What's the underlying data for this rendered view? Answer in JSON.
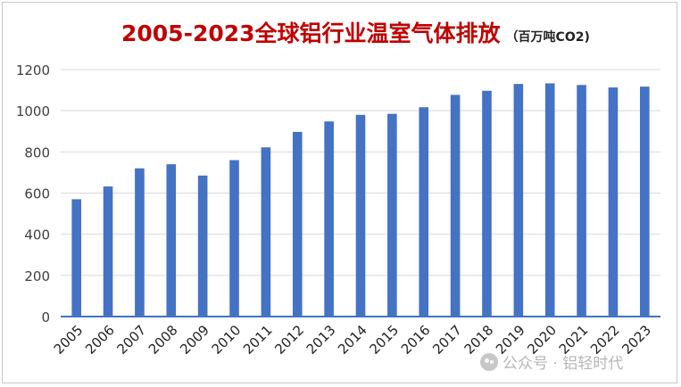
{
  "title": {
    "main": "2005-2023全球铝行业温室气体排放",
    "unit": "（百万吨CO2)"
  },
  "watermark": {
    "text": "公众号 · 铝轻时代",
    "icon": "wechat-icon"
  },
  "colors": {
    "bar": "#4472c4",
    "title": "#c00000",
    "grid": "#d9d9d9",
    "axis": "#4472c4",
    "tick_text": "#404040"
  },
  "chart_data": {
    "type": "bar",
    "title": "2005-2023全球铝行业温室气体排放",
    "xlabel": "",
    "ylabel": "",
    "ylim": [
      0,
      1200
    ],
    "yticks": [
      0,
      200,
      400,
      600,
      800,
      1000,
      1200
    ],
    "grid": true,
    "legend": "none",
    "categories": [
      "2005",
      "2006",
      "2007",
      "2008",
      "2009",
      "2010",
      "2011",
      "2012",
      "2013",
      "2014",
      "2015",
      "2016",
      "2017",
      "2018",
      "2019",
      "2020",
      "2021",
      "2022",
      "2023"
    ],
    "values": [
      570,
      632,
      720,
      740,
      685,
      760,
      822,
      897,
      948,
      980,
      985,
      1017,
      1077,
      1097,
      1130,
      1133,
      1125,
      1113,
      1117
    ]
  }
}
